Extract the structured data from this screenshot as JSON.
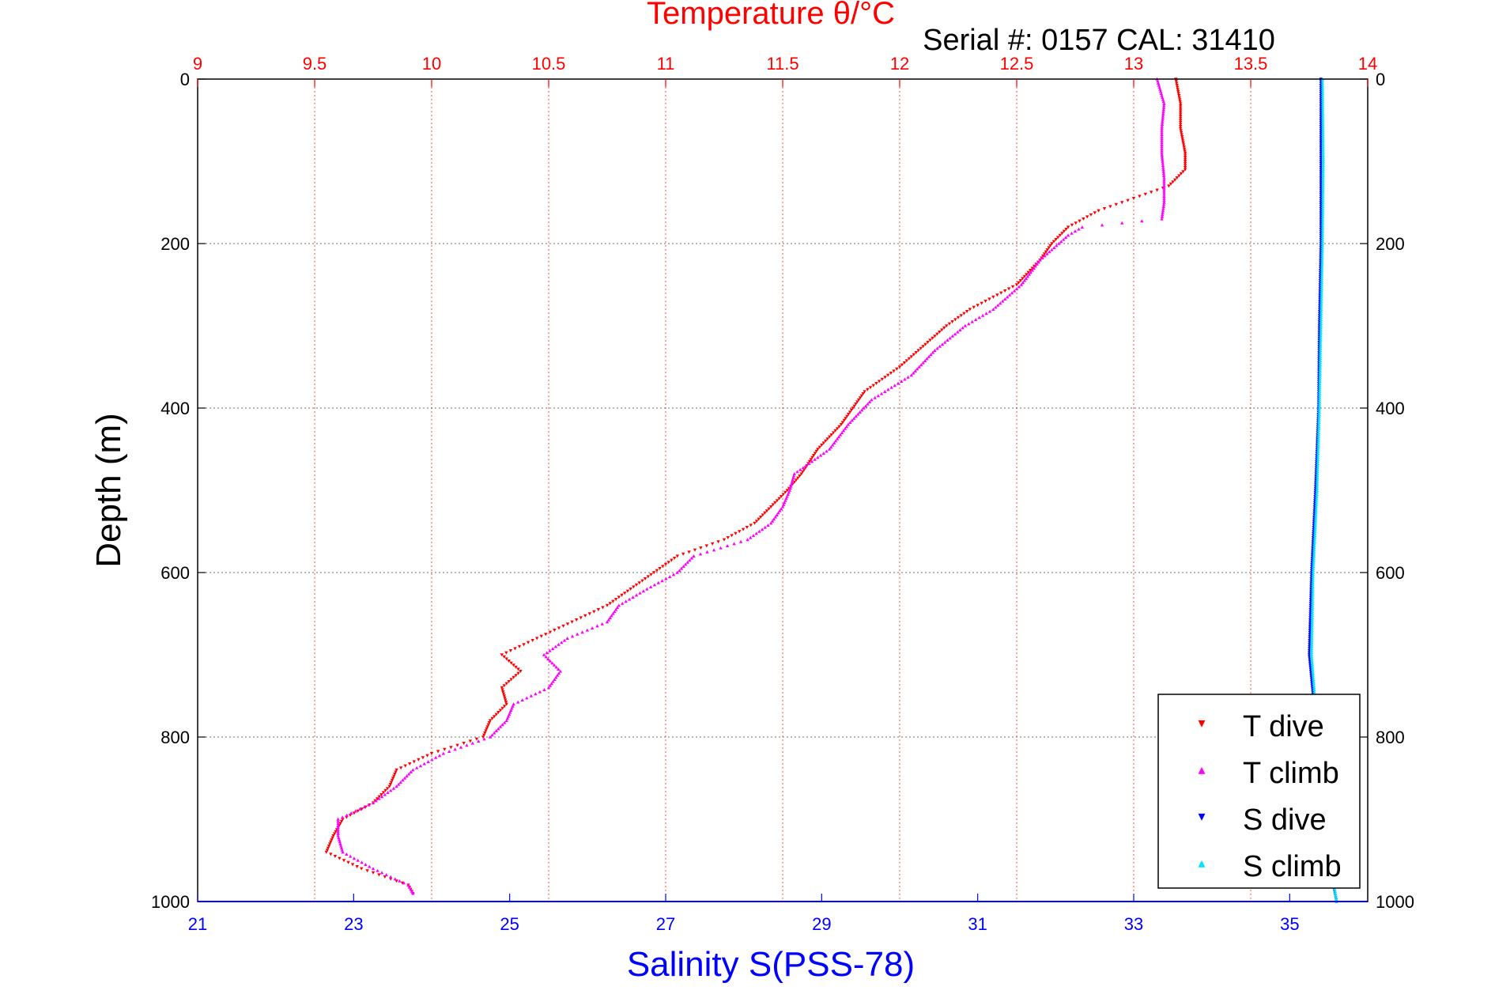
{
  "chart_data": {
    "type": "scatter",
    "title": "Temperature θ/°C",
    "subtitle": "Serial #: 0157  CAL: 31410",
    "ylabel": "Depth (m)",
    "xlabel": "Salinity S(PSS-78)",
    "x_top": {
      "label": "Temperature θ/°C",
      "lim": [
        9,
        14
      ],
      "ticks": [
        "9",
        "9.5",
        "10",
        "10.5",
        "11",
        "11.5",
        "12",
        "12.5",
        "13",
        "13.5",
        "14"
      ],
      "color": "#ff0000"
    },
    "x_bottom": {
      "label": "Salinity S(PSS-78)",
      "lim": [
        21,
        36
      ],
      "ticks": [
        "21",
        "23",
        "25",
        "27",
        "29",
        "31",
        "33",
        "35"
      ],
      "color": "#0000ff"
    },
    "y": {
      "lim": [
        0,
        1000
      ],
      "reversed": true,
      "ticks": [
        "0",
        "200",
        "400",
        "600",
        "800",
        "1000"
      ]
    },
    "grid": true,
    "legend_position": "bottom-right",
    "series": [
      {
        "name": "T dive",
        "axis": "top",
        "color": "#ff0000",
        "marker": "triangle-down",
        "points": [
          [
            0,
            13.18
          ],
          [
            30,
            13.2
          ],
          [
            60,
            13.2
          ],
          [
            90,
            13.22
          ],
          [
            110,
            13.22
          ],
          [
            130,
            13.15
          ],
          [
            145,
            13.0
          ],
          [
            160,
            12.85
          ],
          [
            180,
            12.72
          ],
          [
            200,
            12.65
          ],
          [
            220,
            12.6
          ],
          [
            250,
            12.5
          ],
          [
            280,
            12.3
          ],
          [
            300,
            12.2
          ],
          [
            320,
            12.12
          ],
          [
            350,
            12.0
          ],
          [
            380,
            11.85
          ],
          [
            400,
            11.8
          ],
          [
            420,
            11.75
          ],
          [
            450,
            11.65
          ],
          [
            480,
            11.58
          ],
          [
            500,
            11.52
          ],
          [
            520,
            11.45
          ],
          [
            540,
            11.38
          ],
          [
            560,
            11.25
          ],
          [
            580,
            11.05
          ],
          [
            600,
            10.95
          ],
          [
            620,
            10.85
          ],
          [
            640,
            10.75
          ],
          [
            660,
            10.6
          ],
          [
            680,
            10.45
          ],
          [
            700,
            10.3
          ],
          [
            720,
            10.38
          ],
          [
            740,
            10.3
          ],
          [
            760,
            10.32
          ],
          [
            780,
            10.25
          ],
          [
            800,
            10.22
          ],
          [
            820,
            10.0
          ],
          [
            840,
            9.85
          ],
          [
            860,
            9.82
          ],
          [
            880,
            9.75
          ],
          [
            900,
            9.62
          ],
          [
            920,
            9.58
          ],
          [
            940,
            9.55
          ],
          [
            960,
            9.7
          ],
          [
            980,
            9.9
          ],
          [
            990,
            9.92
          ]
        ]
      },
      {
        "name": "T climb",
        "axis": "top",
        "color": "#ff00ff",
        "marker": "triangle-up",
        "points": [
          [
            0,
            13.1
          ],
          [
            30,
            13.13
          ],
          [
            60,
            13.12
          ],
          [
            90,
            13.12
          ],
          [
            120,
            13.13
          ],
          [
            150,
            13.13
          ],
          [
            170,
            13.12
          ],
          [
            180,
            12.78
          ],
          [
            190,
            12.72
          ],
          [
            200,
            12.68
          ],
          [
            220,
            12.6
          ],
          [
            250,
            12.52
          ],
          [
            280,
            12.4
          ],
          [
            300,
            12.28
          ],
          [
            330,
            12.15
          ],
          [
            360,
            12.05
          ],
          [
            390,
            11.88
          ],
          [
            420,
            11.78
          ],
          [
            450,
            11.7
          ],
          [
            480,
            11.55
          ],
          [
            500,
            11.53
          ],
          [
            520,
            11.5
          ],
          [
            540,
            11.45
          ],
          [
            560,
            11.35
          ],
          [
            580,
            11.12
          ],
          [
            600,
            11.05
          ],
          [
            620,
            10.92
          ],
          [
            640,
            10.8
          ],
          [
            660,
            10.75
          ],
          [
            680,
            10.58
          ],
          [
            700,
            10.48
          ],
          [
            720,
            10.55
          ],
          [
            740,
            10.5
          ],
          [
            760,
            10.35
          ],
          [
            780,
            10.32
          ],
          [
            800,
            10.25
          ],
          [
            820,
            10.05
          ],
          [
            840,
            9.92
          ],
          [
            860,
            9.85
          ],
          [
            880,
            9.75
          ],
          [
            900,
            9.6
          ],
          [
            920,
            9.6
          ],
          [
            940,
            9.62
          ],
          [
            960,
            9.75
          ],
          [
            980,
            9.9
          ],
          [
            990,
            9.92
          ]
        ]
      },
      {
        "name": "S dive",
        "axis": "bottom",
        "color": "#0000ff",
        "marker": "triangle-down",
        "points": [
          [
            0,
            35.4
          ],
          [
            100,
            35.4
          ],
          [
            200,
            35.4
          ],
          [
            300,
            35.38
          ],
          [
            400,
            35.37
          ],
          [
            500,
            35.33
          ],
          [
            600,
            35.28
          ],
          [
            700,
            35.25
          ],
          [
            750,
            35.3
          ],
          [
            800,
            35.35
          ],
          [
            900,
            35.4
          ],
          [
            1000,
            35.6
          ]
        ]
      },
      {
        "name": "S climb",
        "axis": "bottom",
        "color": "#00e5ff",
        "marker": "triangle-up",
        "points": [
          [
            0,
            35.42
          ],
          [
            100,
            35.43
          ],
          [
            200,
            35.42
          ],
          [
            300,
            35.4
          ],
          [
            400,
            35.38
          ],
          [
            500,
            35.35
          ],
          [
            600,
            35.3
          ],
          [
            700,
            35.28
          ],
          [
            750,
            35.32
          ],
          [
            800,
            35.38
          ],
          [
            900,
            35.45
          ],
          [
            1000,
            35.6
          ]
        ]
      }
    ]
  },
  "legend": {
    "items": [
      {
        "label": "T dive",
        "color": "#ff0000",
        "glyph": "▾"
      },
      {
        "label": "T climb",
        "color": "#ff00ff",
        "glyph": "▴"
      },
      {
        "label": "S dive",
        "color": "#0000ff",
        "glyph": "▾"
      },
      {
        "label": "S climb",
        "color": "#00e5ff",
        "glyph": "▴"
      }
    ]
  }
}
